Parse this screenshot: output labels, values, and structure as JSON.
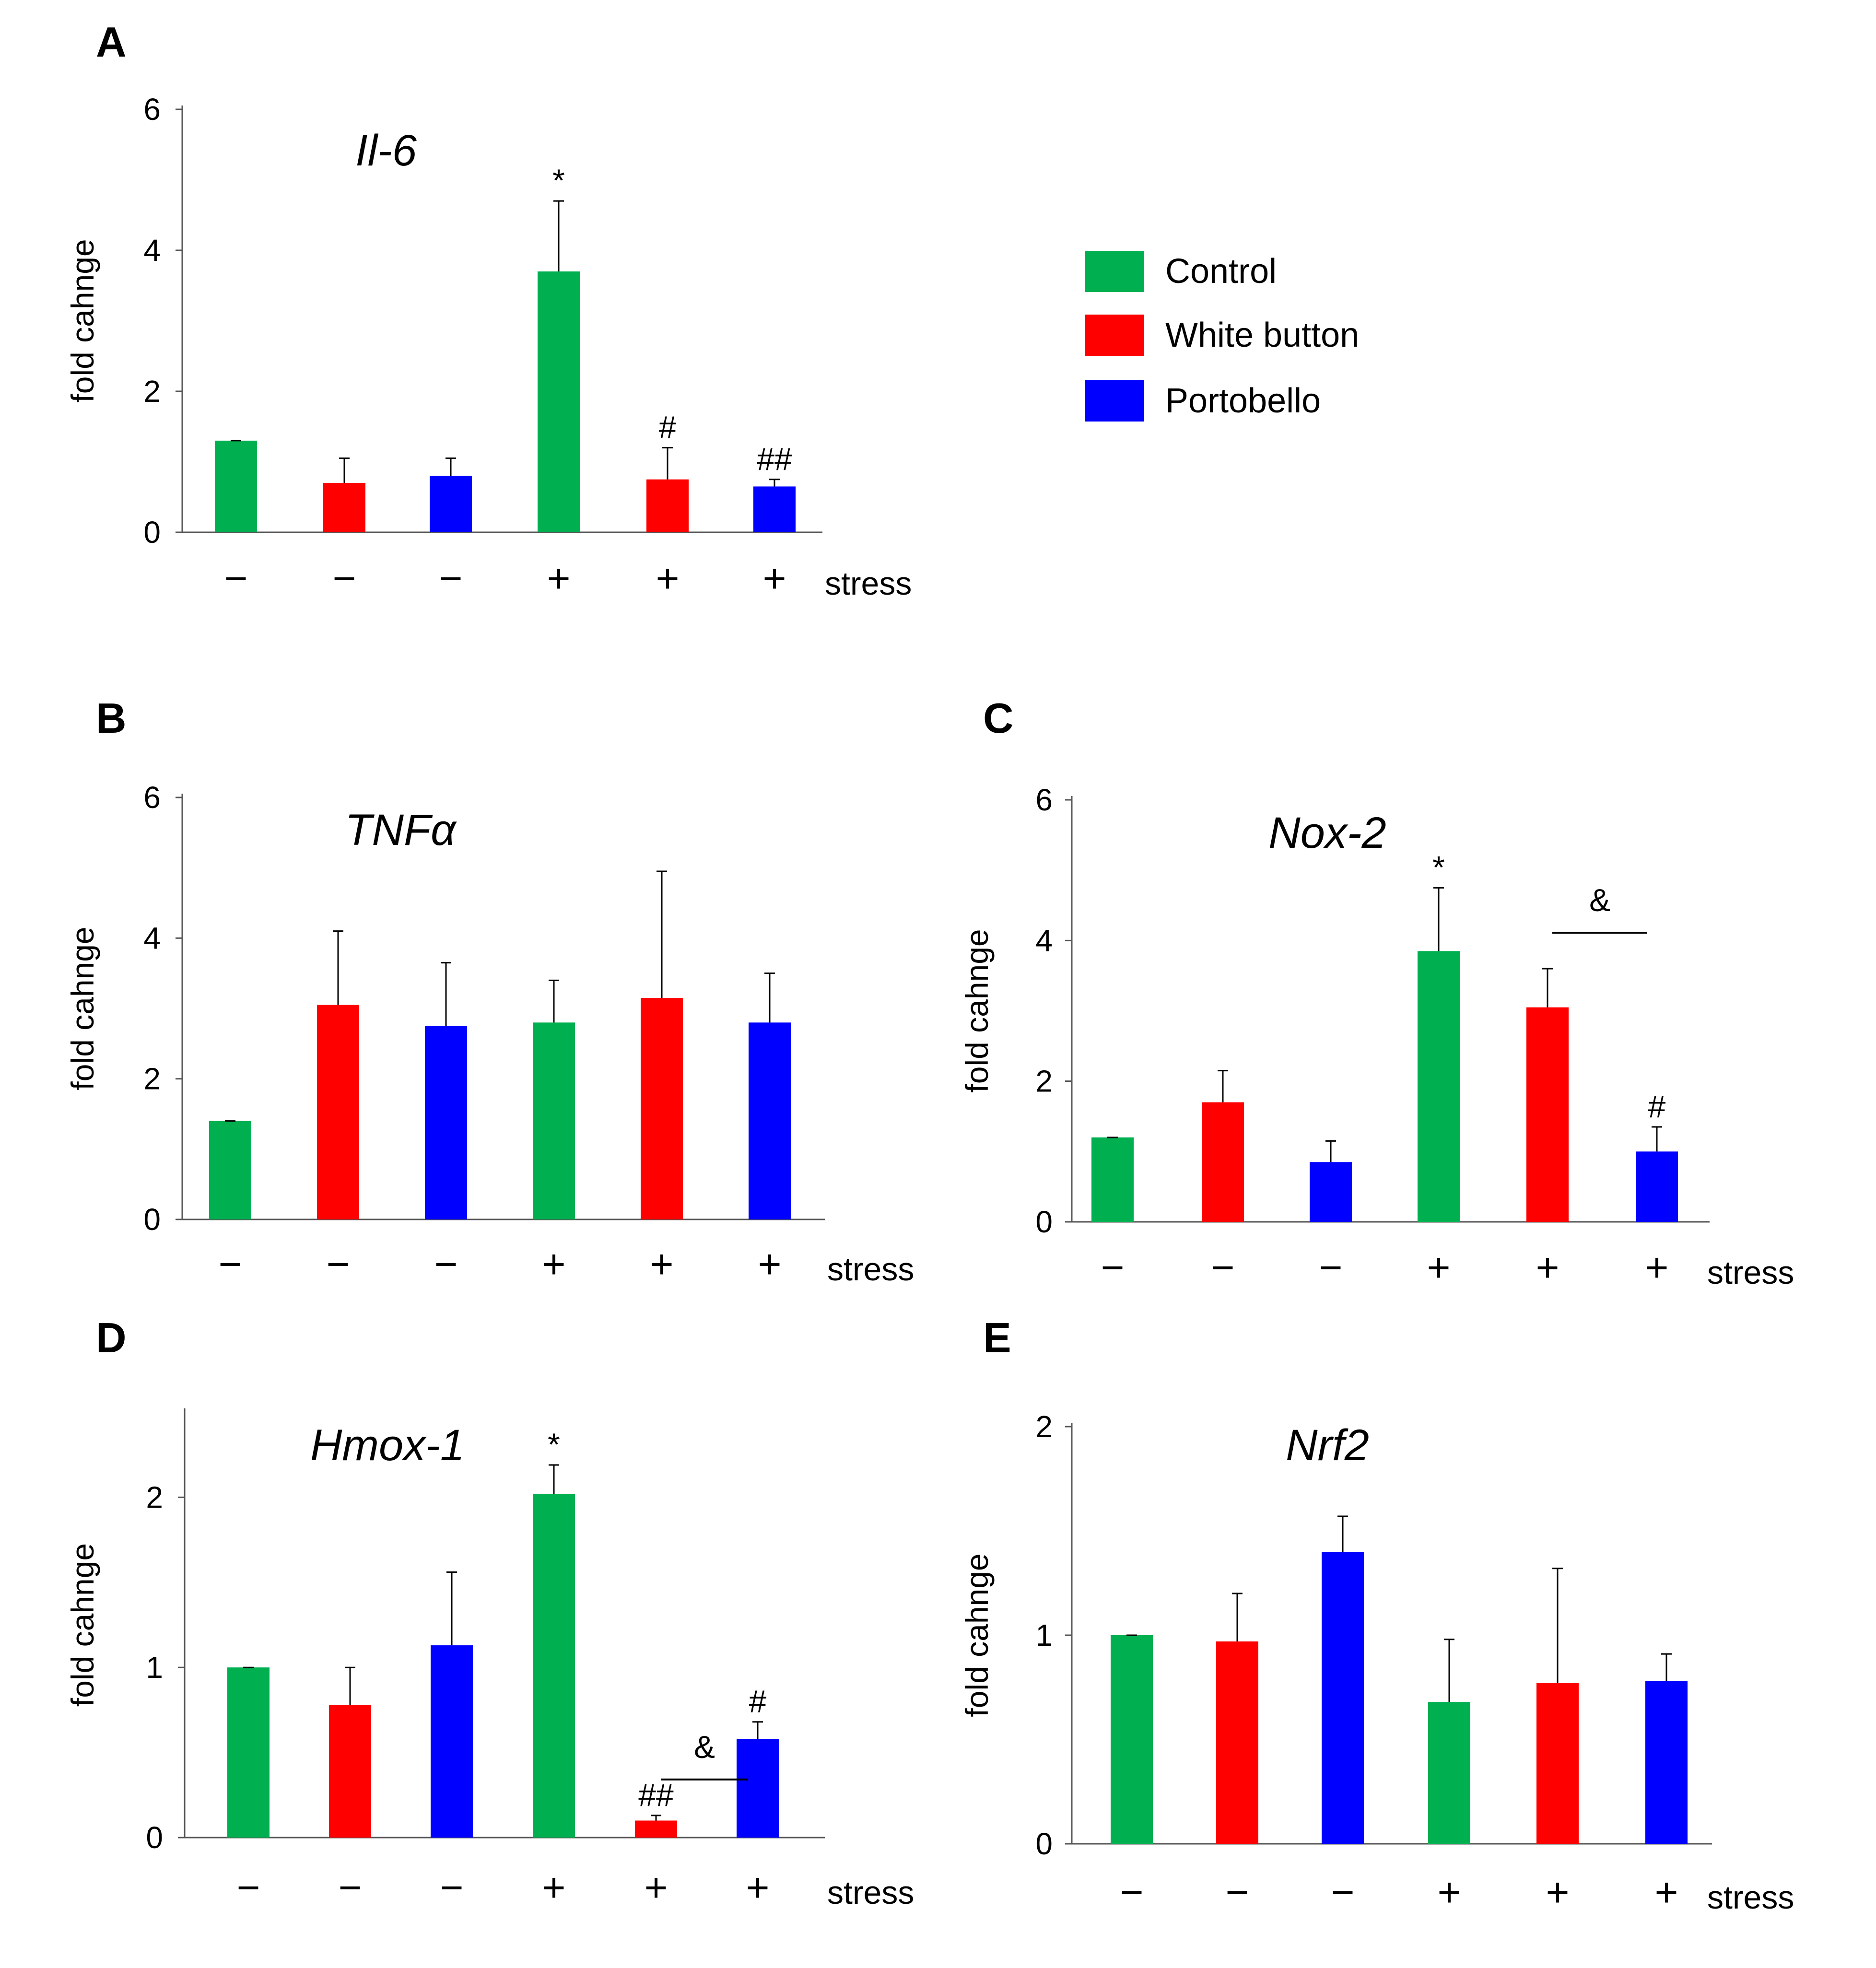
{
  "figure": {
    "legend": {
      "entries": [
        {
          "label": "Control",
          "color": "#00b050"
        },
        {
          "label": "White button",
          "color": "#ff0000"
        },
        {
          "label": "Portobello",
          "color": "#0000ff"
        }
      ]
    }
  },
  "chart_data": [
    {
      "panel": "A",
      "type": "bar",
      "title": "Il-6",
      "ylabel": "fold cahnge",
      "ylim": [
        0,
        6
      ],
      "yticks": [
        "0",
        "2",
        "4",
        "6"
      ],
      "categories": [
        "−",
        "−",
        "−",
        "+",
        "+",
        "+"
      ],
      "category_axis_label": "stress",
      "colors": [
        "#00b050",
        "#ff0000",
        "#0000ff",
        "#00b050",
        "#ff0000",
        "#0000ff"
      ],
      "values": [
        1.3,
        0.7,
        0.8,
        3.7,
        0.75,
        0.65
      ],
      "errors": [
        0.0,
        0.35,
        0.25,
        1.0,
        0.45,
        0.1
      ],
      "annotations": [
        "",
        "",
        "",
        "*",
        "#",
        "##"
      ]
    },
    {
      "panel": "B",
      "type": "bar",
      "title": "TNFα",
      "ylabel": "fold cahnge",
      "ylim": [
        0,
        6
      ],
      "yticks": [
        "0",
        "2",
        "4",
        "6"
      ],
      "categories": [
        "−",
        "−",
        "−",
        "+",
        "+",
        "+"
      ],
      "category_axis_label": "stress",
      "colors": [
        "#00b050",
        "#ff0000",
        "#0000ff",
        "#00b050",
        "#ff0000",
        "#0000ff"
      ],
      "values": [
        1.4,
        3.05,
        2.75,
        2.8,
        3.15,
        2.8
      ],
      "errors": [
        0.0,
        1.05,
        0.9,
        0.6,
        1.8,
        0.7
      ],
      "annotations": [
        "",
        "",
        "",
        "",
        "",
        ""
      ]
    },
    {
      "panel": "C",
      "type": "bar",
      "title": "Nox-2",
      "ylabel": "fold cahnge",
      "ylim": [
        0,
        6
      ],
      "yticks": [
        "0",
        "2",
        "4",
        "6"
      ],
      "categories": [
        "−",
        "−",
        "−",
        "+",
        "+",
        "+"
      ],
      "category_axis_label": "stress",
      "colors": [
        "#00b050",
        "#ff0000",
        "#0000ff",
        "#00b050",
        "#ff0000",
        "#0000ff"
      ],
      "values": [
        1.2,
        1.7,
        0.85,
        3.85,
        3.05,
        1.0
      ],
      "errors": [
        0.0,
        0.45,
        0.3,
        0.9,
        0.55,
        0.35
      ],
      "annotations": [
        "",
        "",
        "",
        "*",
        "",
        "#"
      ],
      "bracket": {
        "from": 4,
        "to": 5,
        "label": "&"
      }
    },
    {
      "panel": "D",
      "type": "bar",
      "title": "Hmox-1",
      "ylabel": "fold cahnge",
      "ylim": [
        0,
        2.5
      ],
      "yticks": [
        "0",
        "1",
        "2"
      ],
      "categories": [
        "−",
        "−",
        "−",
        "+",
        "+",
        "+"
      ],
      "category_axis_label": "stress",
      "colors": [
        "#00b050",
        "#ff0000",
        "#0000ff",
        "#00b050",
        "#ff0000",
        "#0000ff"
      ],
      "values": [
        1.0,
        0.78,
        1.13,
        2.02,
        0.1,
        0.58
      ],
      "errors": [
        0.0,
        0.22,
        0.43,
        0.17,
        0.03,
        0.1
      ],
      "annotations": [
        "",
        "",
        "",
        "*",
        "##",
        "#"
      ],
      "bracket": {
        "from": 4,
        "to": 5,
        "label": "&"
      }
    },
    {
      "panel": "E",
      "type": "bar",
      "title": "Nrf2",
      "ylabel": "fold cahnge",
      "ylim": [
        0,
        2
      ],
      "yticks": [
        "0",
        "1",
        "2"
      ],
      "categories": [
        "−",
        "−",
        "−",
        "+",
        "+",
        "+"
      ],
      "category_axis_label": "stress",
      "colors": [
        "#00b050",
        "#ff0000",
        "#0000ff",
        "#00b050",
        "#ff0000",
        "#0000ff"
      ],
      "values": [
        1.0,
        0.97,
        1.4,
        0.68,
        0.77,
        0.78
      ],
      "errors": [
        0.0,
        0.23,
        0.17,
        0.3,
        0.55,
        0.13
      ],
      "annotations": [
        "",
        "",
        "",
        "",
        "",
        ""
      ]
    }
  ]
}
